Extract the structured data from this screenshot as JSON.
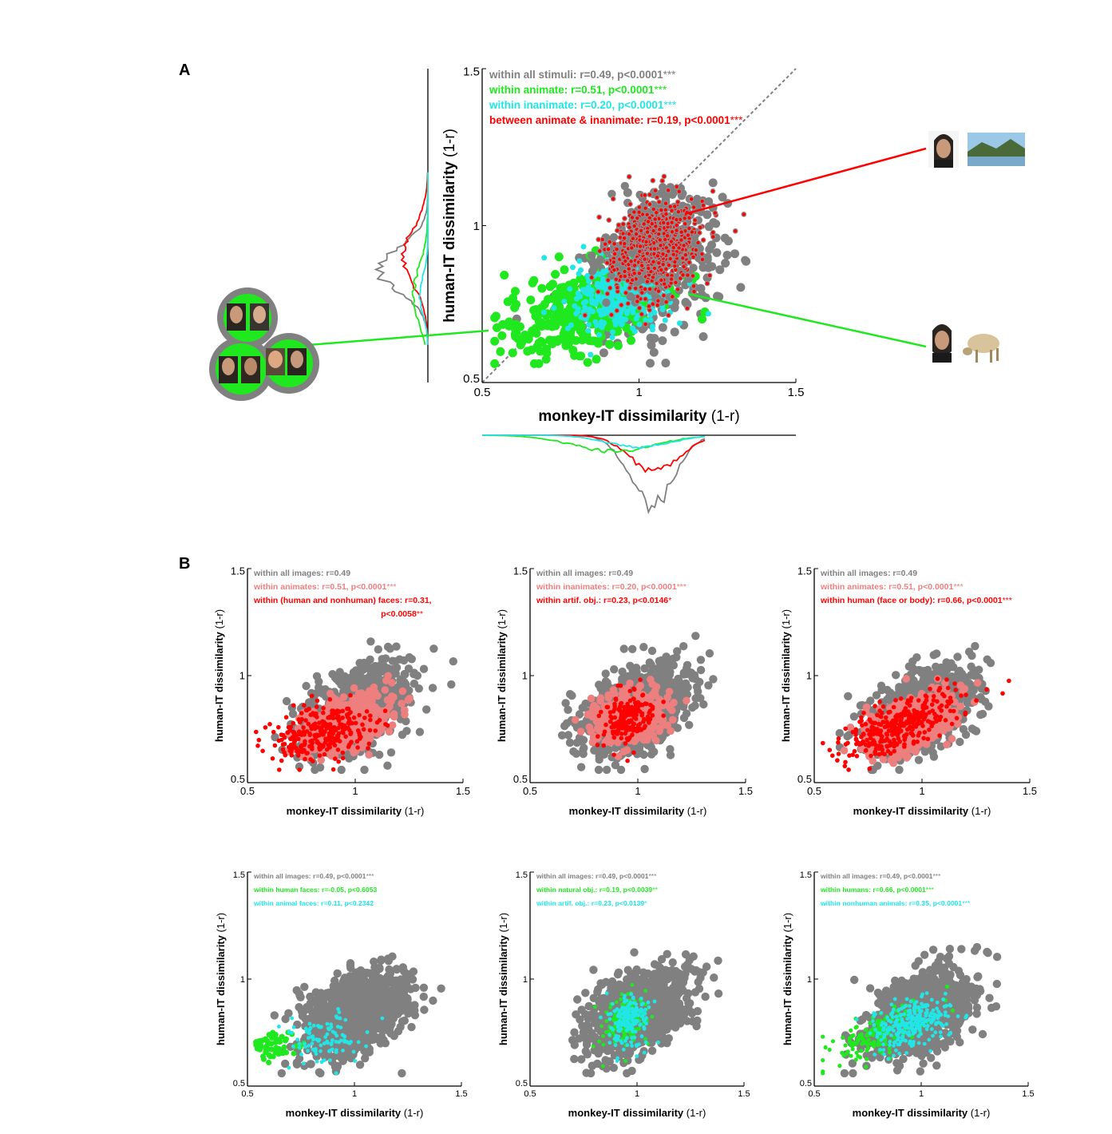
{
  "panel_labels": [
    "A",
    "B"
  ],
  "colors": {
    "grey": "#808080",
    "green": "#1fe81f",
    "cyan": "#22e6e6",
    "red": "#ff0000",
    "salmon": "#ee7f7f"
  },
  "chart_data": [
    {
      "id": "A",
      "type": "scatter",
      "xlabel": "monkey-IT dissimilarity",
      "xunit": "(1-r)",
      "ylabel": "human-IT dissimilarity",
      "yunit": "(1-r)",
      "xlim": [
        0.5,
        1.5
      ],
      "ylim": [
        0.5,
        1.5
      ],
      "xticks": [
        "0.5",
        "1",
        "1.5"
      ],
      "yticks": [
        "0.5",
        "1",
        "1.5"
      ],
      "diagonal": true,
      "legend": [
        {
          "text": "within all stimuli: r=0.49, p<0.0001",
          "stars": "***",
          "color": "#808080"
        },
        {
          "text": "within animate: r=0.51, p<0.0001",
          "stars": "***",
          "color": "#1fe81f"
        },
        {
          "text": "within inanimate: r=0.20, p<0.0001",
          "stars": "***",
          "color": "#22e6e6"
        },
        {
          "text": "between animate & inanimate: r=0.19, p<0.0001",
          "stars": "***",
          "color": "#ff0000"
        }
      ],
      "series": [
        {
          "color": "#808080",
          "cx": 1.03,
          "cy": 0.84,
          "sx": 0.12,
          "sy": 0.11,
          "rho": 0.45,
          "n": 300,
          "r": 5.5
        },
        {
          "color": "#1fe81f",
          "cx": 0.82,
          "cy": 0.73,
          "sx": 0.13,
          "sy": 0.08,
          "rho": 0.5,
          "n": 330,
          "r": 5.5
        },
        {
          "color": "#22e6e6",
          "cx": 0.95,
          "cy": 0.78,
          "sx": 0.08,
          "sy": 0.06,
          "rho": 0.2,
          "n": 360,
          "r": 3.5
        },
        {
          "color": "#808080",
          "cx": 1.05,
          "cy": 0.94,
          "sx": 0.08,
          "sy": 0.08,
          "rho": 0.2,
          "n": 320,
          "r": 5.2
        },
        {
          "color": "#ff0000",
          "cx": 1.05,
          "cy": 0.93,
          "sx": 0.075,
          "sy": 0.075,
          "rho": 0.19,
          "n": 700,
          "r": 2.8
        }
      ],
      "marginal_y": [
        {
          "color": "#808080",
          "mu": 0.86,
          "sd": 0.07,
          "amp": 62
        },
        {
          "color": "#ff0000",
          "mu": 0.9,
          "sd": 0.09,
          "amp": 30
        },
        {
          "color": "#1fe81f",
          "mu": 0.78,
          "sd": 0.09,
          "amp": 18
        },
        {
          "color": "#22e6e6",
          "mu": 0.78,
          "sd": 0.06,
          "amp": 10
        }
      ],
      "marginal_x": [
        {
          "color": "#808080",
          "mu": 1.04,
          "sd": 0.07,
          "amp": 88
        },
        {
          "color": "#ff0000",
          "mu": 1.05,
          "sd": 0.08,
          "amp": 44
        },
        {
          "color": "#1fe81f",
          "mu": 0.92,
          "sd": 0.13,
          "amp": 20
        },
        {
          "color": "#22e6e6",
          "mu": 1.0,
          "sd": 0.1,
          "amp": 15
        }
      ]
    },
    {
      "id": "B1",
      "type": "scatter",
      "xlabel": "monkey-IT dissimilarity",
      "xunit": "(1-r)",
      "ylabel": "human-IT dissimilarity",
      "yunit": "(1-r)",
      "xlim": [
        0.5,
        1.5
      ],
      "ylim": [
        0.5,
        1.5
      ],
      "xticks": [
        "0.5",
        "1",
        "1.5"
      ],
      "yticks": [
        "0.5",
        "1",
        "1.5"
      ],
      "legend": [
        {
          "text": "within all images: r=0.49",
          "stars": "",
          "color": "#808080"
        },
        {
          "text": "within animates: r=0.51, p<0.0001",
          "stars": "***",
          "color": "#ee7f7f"
        },
        {
          "text": "within (human and nonhuman) faces: r=0.31,",
          "stars": "",
          "color": "#ff0000"
        },
        {
          "text": "p<0.0058",
          "stars": "**",
          "color": "#ff0000",
          "align": "right"
        }
      ],
      "series": [
        {
          "color": "#808080",
          "cx": 1.0,
          "cy": 0.84,
          "sx": 0.12,
          "sy": 0.1,
          "rho": 0.45,
          "n": 1000,
          "r": 5.2
        },
        {
          "color": "#ee7f7f",
          "cx": 0.95,
          "cy": 0.77,
          "sx": 0.1,
          "sy": 0.07,
          "rho": 0.5,
          "n": 650,
          "r": 4.8
        },
        {
          "color": "#ff0000",
          "cx": 0.84,
          "cy": 0.73,
          "sx": 0.11,
          "sy": 0.07,
          "rho": 0.31,
          "n": 280,
          "r": 2.8
        }
      ]
    },
    {
      "id": "B2",
      "type": "scatter",
      "xlabel": "monkey-IT dissimilarity",
      "xunit": "(1-r)",
      "ylabel": "human-IT dissimilarity",
      "yunit": "(1-r)",
      "xlim": [
        0.5,
        1.5
      ],
      "ylim": [
        0.5,
        1.5
      ],
      "xticks": [
        "0.5",
        "1",
        "1.5"
      ],
      "yticks": [
        "0.5",
        "1",
        "1.5"
      ],
      "legend": [
        {
          "text": "within all images: r=0.49",
          "stars": "",
          "color": "#808080"
        },
        {
          "text": "within inanimates: r=0.20, p<0.0001",
          "stars": "***",
          "color": "#ee7f7f"
        },
        {
          "text": "within artif. obj.: r=0.23, p<0.0146",
          "stars": "*",
          "color": "#ff0000"
        }
      ],
      "series": [
        {
          "color": "#808080",
          "cx": 1.0,
          "cy": 0.84,
          "sx": 0.12,
          "sy": 0.1,
          "rho": 0.45,
          "n": 1000,
          "r": 5.2
        },
        {
          "color": "#ee7f7f",
          "cx": 0.96,
          "cy": 0.8,
          "sx": 0.08,
          "sy": 0.06,
          "rho": 0.2,
          "n": 500,
          "r": 4.8
        },
        {
          "color": "#ff0000",
          "cx": 0.95,
          "cy": 0.8,
          "sx": 0.06,
          "sy": 0.06,
          "rho": 0.23,
          "n": 190,
          "r": 2.8
        }
      ]
    },
    {
      "id": "B3",
      "type": "scatter",
      "xlabel": "monkey-IT dissimilarity",
      "xunit": "(1-r)",
      "ylabel": "human-IT dissimilarity",
      "yunit": "(1-r)",
      "xlim": [
        0.5,
        1.5
      ],
      "ylim": [
        0.5,
        1.5
      ],
      "xticks": [
        "0.5",
        "1",
        "1.5"
      ],
      "yticks": [
        "0.5",
        "1",
        "1.5"
      ],
      "legend": [
        {
          "text": "within all images: r=0.49",
          "stars": "",
          "color": "#808080"
        },
        {
          "text": "within animates: r=0.51, p<0.0001",
          "stars": "***",
          "color": "#ee7f7f"
        },
        {
          "text": "within human (face or body): r=0.66, p<0.0001",
          "stars": "***",
          "color": "#ff0000"
        }
      ],
      "series": [
        {
          "color": "#808080",
          "cx": 1.0,
          "cy": 0.84,
          "sx": 0.12,
          "sy": 0.1,
          "rho": 0.45,
          "n": 1000,
          "r": 5.2
        },
        {
          "color": "#ee7f7f",
          "cx": 0.95,
          "cy": 0.77,
          "sx": 0.1,
          "sy": 0.07,
          "rho": 0.5,
          "n": 650,
          "r": 4.8
        },
        {
          "color": "#ff0000",
          "cx": 0.9,
          "cy": 0.77,
          "sx": 0.13,
          "sy": 0.08,
          "rho": 0.66,
          "n": 320,
          "r": 2.8
        }
      ]
    },
    {
      "id": "B4",
      "type": "scatter",
      "xlabel": "monkey-IT dissimilarity",
      "xunit": "(1-r)",
      "ylabel": "human-IT dissimilarity",
      "yunit": "(1-r)",
      "xlim": [
        0.5,
        1.5
      ],
      "ylim": [
        0.5,
        1.5
      ],
      "xticks": [
        "0.5",
        "1",
        "1.5"
      ],
      "yticks": [
        "0.5",
        "1",
        "1.5"
      ],
      "legend": [
        {
          "text": "within all images: r=0.49, p<0.0001",
          "stars": "***",
          "color": "#808080"
        },
        {
          "text": "within human faces: r=-0.05, p<0.6053",
          "stars": "",
          "color": "#1fe81f"
        },
        {
          "text": "within animal faces: r=0.11, p<0.2342",
          "stars": "",
          "color": "#22e6e6"
        }
      ],
      "series": [
        {
          "color": "#808080",
          "cx": 1.0,
          "cy": 0.84,
          "sx": 0.12,
          "sy": 0.1,
          "rho": 0.45,
          "n": 1000,
          "r": 5.2
        },
        {
          "color": "#1fe81f",
          "cx": 0.62,
          "cy": 0.68,
          "sx": 0.06,
          "sy": 0.04,
          "rho": -0.05,
          "n": 60,
          "r": 3.5
        },
        {
          "color": "#22e6e6",
          "cx": 0.86,
          "cy": 0.72,
          "sx": 0.09,
          "sy": 0.06,
          "rho": 0.11,
          "n": 100,
          "r": 2.4
        }
      ]
    },
    {
      "id": "B5",
      "type": "scatter",
      "xlabel": "monkey-IT dissimilarity",
      "xunit": "(1-r)",
      "ylabel": "human-IT dissimilarity",
      "yunit": "(1-r)",
      "xlim": [
        0.5,
        1.5
      ],
      "ylim": [
        0.5,
        1.5
      ],
      "xticks": [
        "0.5",
        "1",
        "1.5"
      ],
      "yticks": [
        "0.5",
        "1",
        "1.5"
      ],
      "legend": [
        {
          "text": "within all images: r=0.49, p<0.0001",
          "stars": "***",
          "color": "#808080"
        },
        {
          "text": "within natural obj.: r=0.19, p<0.0039",
          "stars": "**",
          "color": "#1fe81f"
        },
        {
          "text": "within artif. obj.: r=0.23, p<0.0139",
          "stars": "*",
          "color": "#22e6e6"
        }
      ],
      "series": [
        {
          "color": "#808080",
          "cx": 1.0,
          "cy": 0.84,
          "sx": 0.12,
          "sy": 0.1,
          "rho": 0.45,
          "n": 1000,
          "r": 5.2
        },
        {
          "color": "#1fe81f",
          "cx": 0.95,
          "cy": 0.8,
          "sx": 0.05,
          "sy": 0.06,
          "rho": 0.19,
          "n": 170,
          "r": 2.4
        },
        {
          "color": "#22e6e6",
          "cx": 0.96,
          "cy": 0.8,
          "sx": 0.05,
          "sy": 0.06,
          "rho": 0.23,
          "n": 170,
          "r": 2.4
        }
      ]
    },
    {
      "id": "B6",
      "type": "scatter",
      "xlabel": "monkey-IT dissimilarity",
      "xunit": "(1-r)",
      "ylabel": "human-IT dissimilarity",
      "yunit": "(1-r)",
      "xlim": [
        0.5,
        1.5
      ],
      "ylim": [
        0.5,
        1.5
      ],
      "xticks": [
        "0.5",
        "1",
        "1.5"
      ],
      "yticks": [
        "0.5",
        "1",
        "1.5"
      ],
      "legend": [
        {
          "text": "within all images: r=0.49, p<0.0001",
          "stars": "***",
          "color": "#808080"
        },
        {
          "text": "within humans: r=0.66, p<0.0001",
          "stars": "***",
          "color": "#1fe81f"
        },
        {
          "text": "within nonhuman animals: r=0.35, p<0.0001",
          "stars": "***",
          "color": "#22e6e6"
        }
      ],
      "series": [
        {
          "color": "#808080",
          "cx": 1.0,
          "cy": 0.84,
          "sx": 0.12,
          "sy": 0.1,
          "rho": 0.45,
          "n": 1000,
          "r": 5.2
        },
        {
          "color": "#1fe81f",
          "cx": 0.78,
          "cy": 0.74,
          "sx": 0.12,
          "sy": 0.07,
          "rho": 0.66,
          "n": 160,
          "r": 2.6
        },
        {
          "color": "#22e6e6",
          "cx": 0.96,
          "cy": 0.79,
          "sx": 0.09,
          "sy": 0.06,
          "rho": 0.35,
          "n": 260,
          "r": 2.4
        }
      ]
    }
  ],
  "stimulus_pictures": {
    "left_group": "face-cluster-picture",
    "top_right": "face-and-landscape-picture",
    "bottom_right": "face-and-sheep-picture"
  }
}
